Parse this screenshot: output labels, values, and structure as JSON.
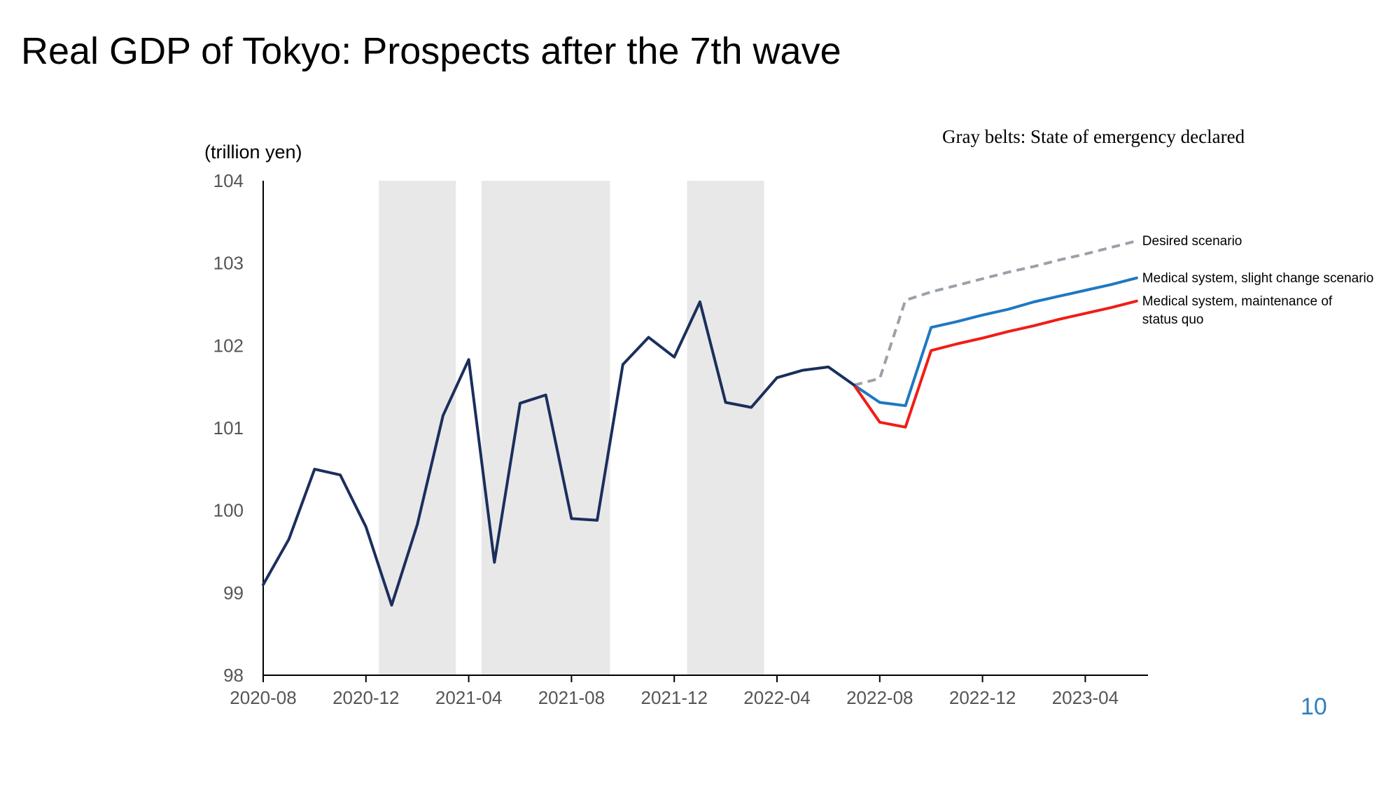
{
  "slide": {
    "title": "Real GDP of Tokyo: Prospects after the 7th wave",
    "page_number": "10"
  },
  "chart_data": {
    "type": "line",
    "title": "",
    "ylabel": "(trillion yen)",
    "xlabel": "",
    "note": "Gray belts: State of emergency declared",
    "ylim": [
      98,
      104
    ],
    "yticks": [
      "98",
      "99",
      "100",
      "101",
      "102",
      "103",
      "104"
    ],
    "xticks": [
      "2020-08",
      "2020-12",
      "2021-04",
      "2021-08",
      "2021-12",
      "2022-04",
      "2022-08",
      "2022-12",
      "2023-04"
    ],
    "x_start": "2020-08",
    "shaded_periods": [
      {
        "start": "2021-01",
        "end": "2021-03"
      },
      {
        "start": "2021-05",
        "end": "2021-09"
      },
      {
        "start": "2022-01",
        "end": "2022-03"
      }
    ],
    "series": [
      {
        "name": "",
        "color": "#1b2f5c",
        "style": "solid",
        "x": [
          "2020-08",
          "2020-09",
          "2020-10",
          "2020-11",
          "2020-12",
          "2021-01",
          "2021-02",
          "2021-03",
          "2021-04",
          "2021-05",
          "2021-06",
          "2021-07",
          "2021-08",
          "2021-09",
          "2021-10",
          "2021-11",
          "2021-12",
          "2022-01",
          "2022-02",
          "2022-03",
          "2022-04",
          "2022-05",
          "2022-06",
          "2022-07"
        ],
        "values": [
          99.1,
          99.65,
          100.5,
          100.43,
          99.8,
          98.85,
          99.83,
          101.15,
          101.83,
          99.37,
          101.3,
          101.4,
          99.9,
          99.88,
          101.77,
          102.1,
          101.86,
          102.53,
          101.31,
          101.25,
          101.61,
          101.7,
          101.74,
          101.52
        ]
      },
      {
        "name": "Desired scenario",
        "color": "#9aa1a9",
        "style": "dashed",
        "x": [
          "2022-07",
          "2022-08",
          "2022-09",
          "2022-10",
          "2022-11",
          "2022-12",
          "2023-01",
          "2023-02",
          "2023-03",
          "2023-04",
          "2023-05",
          "2023-06"
        ],
        "values": [
          101.52,
          101.6,
          102.55,
          102.65,
          102.73,
          102.81,
          102.89,
          102.96,
          103.04,
          103.11,
          103.19,
          103.27
        ]
      },
      {
        "name": "Medical system, slight change scenario",
        "color": "#1f78c1",
        "style": "solid",
        "x": [
          "2022-07",
          "2022-08",
          "2022-09",
          "2022-10",
          "2022-11",
          "2022-12",
          "2023-01",
          "2023-02",
          "2023-03",
          "2023-04",
          "2023-05",
          "2023-06"
        ],
        "values": [
          101.52,
          101.31,
          101.27,
          102.22,
          102.29,
          102.37,
          102.44,
          102.53,
          102.6,
          102.67,
          102.74,
          102.82
        ]
      },
      {
        "name": "Medical system, maintenance of status quo",
        "color": "#f01d16",
        "style": "solid",
        "x": [
          "2022-07",
          "2022-08",
          "2022-09",
          "2022-10",
          "2022-11",
          "2022-12",
          "2023-01",
          "2023-02",
          "2023-03",
          "2023-04",
          "2023-05",
          "2023-06"
        ],
        "values": [
          101.52,
          101.07,
          101.01,
          101.94,
          102.02,
          102.09,
          102.17,
          102.24,
          102.32,
          102.39,
          102.46,
          102.54
        ]
      }
    ],
    "series_label_lines": [
      [
        "Desired scenario"
      ],
      [
        "Medical system, slight change scenario"
      ],
      [
        "Medical system, maintenance of",
        "status quo"
      ]
    ]
  }
}
